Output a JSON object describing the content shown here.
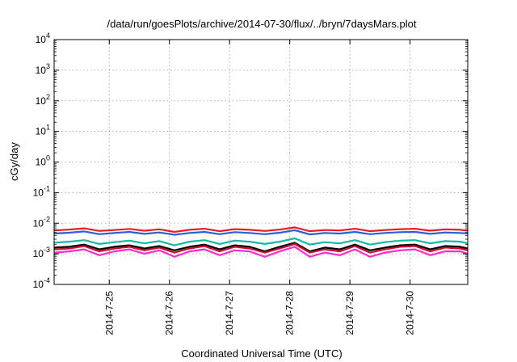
{
  "chart_data": {
    "type": "line",
    "title": "/data/run/goesPlots/archive/2014-07-30/flux/../bryn/7daysMars.plot",
    "xlabel": "Coordinated Universal Time (UTC)",
    "ylabel": "cGy/day",
    "yscale": "log",
    "ylim": [
      0.0001,
      10000
    ],
    "xlim": [
      "2014-07-24 02:00",
      "2014-07-30 23:00"
    ],
    "grid": true,
    "y_ticks": [
      {
        "base": "10",
        "exp": "-4",
        "value": 0.0001
      },
      {
        "base": "10",
        "exp": "-3",
        "value": 0.001
      },
      {
        "base": "10",
        "exp": "-2",
        "value": 0.01
      },
      {
        "base": "10",
        "exp": "-1",
        "value": 0.1
      },
      {
        "base": "10",
        "exp": "0",
        "value": 1
      },
      {
        "base": "10",
        "exp": "1",
        "value": 10
      },
      {
        "base": "10",
        "exp": "2",
        "value": 100
      },
      {
        "base": "10",
        "exp": "3",
        "value": 1000
      },
      {
        "base": "10",
        "exp": "4",
        "value": 10000
      }
    ],
    "x_ticks": [
      {
        "label": "2014-7-25",
        "value": "2014-07-25 00:00"
      },
      {
        "label": "2014-7-26",
        "value": "2014-07-26 00:00"
      },
      {
        "label": "2014-7-27",
        "value": "2014-07-27 00:00"
      },
      {
        "label": "2014-7-28",
        "value": "2014-07-28 00:00"
      },
      {
        "label": "2014-7-29",
        "value": "2014-07-29 00:00"
      },
      {
        "label": "2014-7-30",
        "value": "2014-07-30 00:00"
      }
    ],
    "x": [
      "2014-07-24 02:00",
      "2014-07-24 08:00",
      "2014-07-24 14:00",
      "2014-07-24 20:00",
      "2014-07-25 02:00",
      "2014-07-25 08:00",
      "2014-07-25 14:00",
      "2014-07-25 20:00",
      "2014-07-26 02:00",
      "2014-07-26 08:00",
      "2014-07-26 14:00",
      "2014-07-26 20:00",
      "2014-07-27 02:00",
      "2014-07-27 08:00",
      "2014-07-27 14:00",
      "2014-07-27 20:00",
      "2014-07-28 02:00",
      "2014-07-28 08:00",
      "2014-07-28 14:00",
      "2014-07-28 20:00",
      "2014-07-29 02:00",
      "2014-07-29 08:00",
      "2014-07-29 14:00",
      "2014-07-29 20:00",
      "2014-07-30 02:00",
      "2014-07-30 08:00",
      "2014-07-30 14:00",
      "2014-07-30 20:00",
      "2014-07-30 23:00"
    ],
    "series": [
      {
        "color": "#ee1c24",
        "values": [
          0.0058,
          0.0062,
          0.0068,
          0.0056,
          0.006,
          0.0065,
          0.0057,
          0.0063,
          0.0052,
          0.0061,
          0.0066,
          0.0055,
          0.0064,
          0.0061,
          0.0056,
          0.0062,
          0.0073,
          0.0055,
          0.006,
          0.0058,
          0.0066,
          0.0055,
          0.006,
          0.0064,
          0.0066,
          0.0057,
          0.0063,
          0.0061,
          0.0057
        ]
      },
      {
        "color": "#2b5fd9",
        "values": [
          0.0046,
          0.0049,
          0.0054,
          0.0044,
          0.0048,
          0.0052,
          0.0045,
          0.005,
          0.0042,
          0.0048,
          0.0052,
          0.0044,
          0.0051,
          0.0048,
          0.0044,
          0.0049,
          0.0059,
          0.0043,
          0.0048,
          0.0046,
          0.0052,
          0.0044,
          0.0048,
          0.0051,
          0.0052,
          0.0045,
          0.005,
          0.0048,
          0.0046
        ]
      },
      {
        "color": "#16b9a0",
        "values": [
          0.0023,
          0.0025,
          0.0028,
          0.0021,
          0.0024,
          0.0027,
          0.0022,
          0.0026,
          0.0019,
          0.0025,
          0.0028,
          0.0021,
          0.0027,
          0.0025,
          0.0021,
          0.0025,
          0.0032,
          0.002,
          0.0024,
          0.0022,
          0.0028,
          0.002,
          0.0024,
          0.0027,
          0.0028,
          0.0022,
          0.0026,
          0.0025,
          0.0022
        ]
      },
      {
        "color": "#000000",
        "values": [
          0.0016,
          0.0017,
          0.002,
          0.0014,
          0.0017,
          0.0019,
          0.0015,
          0.0018,
          0.0013,
          0.0017,
          0.002,
          0.0014,
          0.0019,
          0.0017,
          0.0012,
          0.0017,
          0.0023,
          0.0012,
          0.0016,
          0.0014,
          0.002,
          0.0013,
          0.0016,
          0.0019,
          0.002,
          0.0014,
          0.0018,
          0.0017,
          0.0015
        ]
      },
      {
        "color": "#c8102e",
        "values": [
          0.0014,
          0.0015,
          0.0018,
          0.0012,
          0.0015,
          0.0017,
          0.0013,
          0.0016,
          0.0011,
          0.0015,
          0.0018,
          0.0012,
          0.0017,
          0.0015,
          0.0011,
          0.0015,
          0.0021,
          0.0011,
          0.0014,
          0.0012,
          0.0018,
          0.0011,
          0.0014,
          0.0017,
          0.0018,
          0.0012,
          0.0016,
          0.0015,
          0.0013
        ]
      },
      {
        "color": "#ff2bd0",
        "values": [
          0.0011,
          0.0012,
          0.0014,
          0.0009,
          0.0012,
          0.0014,
          0.001,
          0.0013,
          0.0008,
          0.0012,
          0.0014,
          0.0009,
          0.0013,
          0.0012,
          0.0008,
          0.0012,
          0.0017,
          0.0008,
          0.0011,
          0.0009,
          0.0014,
          0.0008,
          0.0011,
          0.0013,
          0.0014,
          0.0009,
          0.0012,
          0.0012,
          0.001
        ]
      }
    ]
  }
}
